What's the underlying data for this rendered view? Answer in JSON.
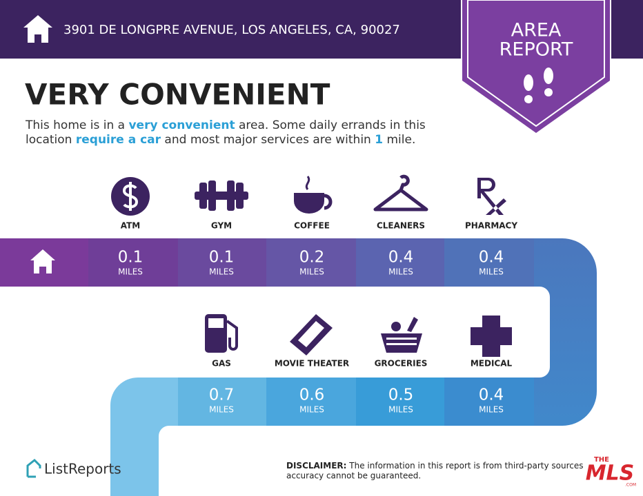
{
  "header": {
    "address": "3901 DE LONGPRE AVENUE, LOS ANGELES, CA, 90027"
  },
  "badge": {
    "lines": [
      "AREA",
      "REPORT"
    ]
  },
  "heading": "VERY CONVENIENT",
  "description": [
    [
      {
        "text": "This home is in a "
      },
      {
        "text": "very convenient",
        "emphasis": true
      },
      {
        "text": " area. Some daily errands in this"
      }
    ],
    [
      {
        "text": "location "
      },
      {
        "text": "require a car",
        "emphasis": true
      },
      {
        "text": " and most major services are within "
      },
      {
        "text": "1",
        "emphasis": true
      },
      {
        "text": " mile."
      }
    ]
  ],
  "amenities": [
    {
      "name": "ATM",
      "distance": 0.1,
      "unit": "MILES"
    },
    {
      "name": "GYM",
      "distance": 0.1,
      "unit": "MILES"
    },
    {
      "name": "COFFEE",
      "distance": 0.2,
      "unit": "MILES"
    },
    {
      "name": "CLEANERS",
      "distance": 0.4,
      "unit": "MILES"
    },
    {
      "name": "PHARMACY",
      "distance": 0.4,
      "unit": "MILES"
    },
    {
      "name": "GAS",
      "distance": 0.7,
      "unit": "MILES"
    },
    {
      "name": "MOVIE THEATER",
      "distance": 0.6,
      "unit": "MILES"
    },
    {
      "name": "GROCERIES",
      "distance": 0.5,
      "unit": "MILES"
    },
    {
      "name": "MEDICAL",
      "distance": 0.4,
      "unit": "MILES"
    }
  ],
  "footer": {
    "brand": "ListReports",
    "disclaimer_label": "DISCLAIMER:",
    "disclaimer_lines": [
      "The information in this report is from third-party sources and",
      "accuracy cannot be guaranteed."
    ],
    "mls_logo": {
      "top": "THE",
      "main": "MLS",
      "suffix": ".COM"
    }
  }
}
